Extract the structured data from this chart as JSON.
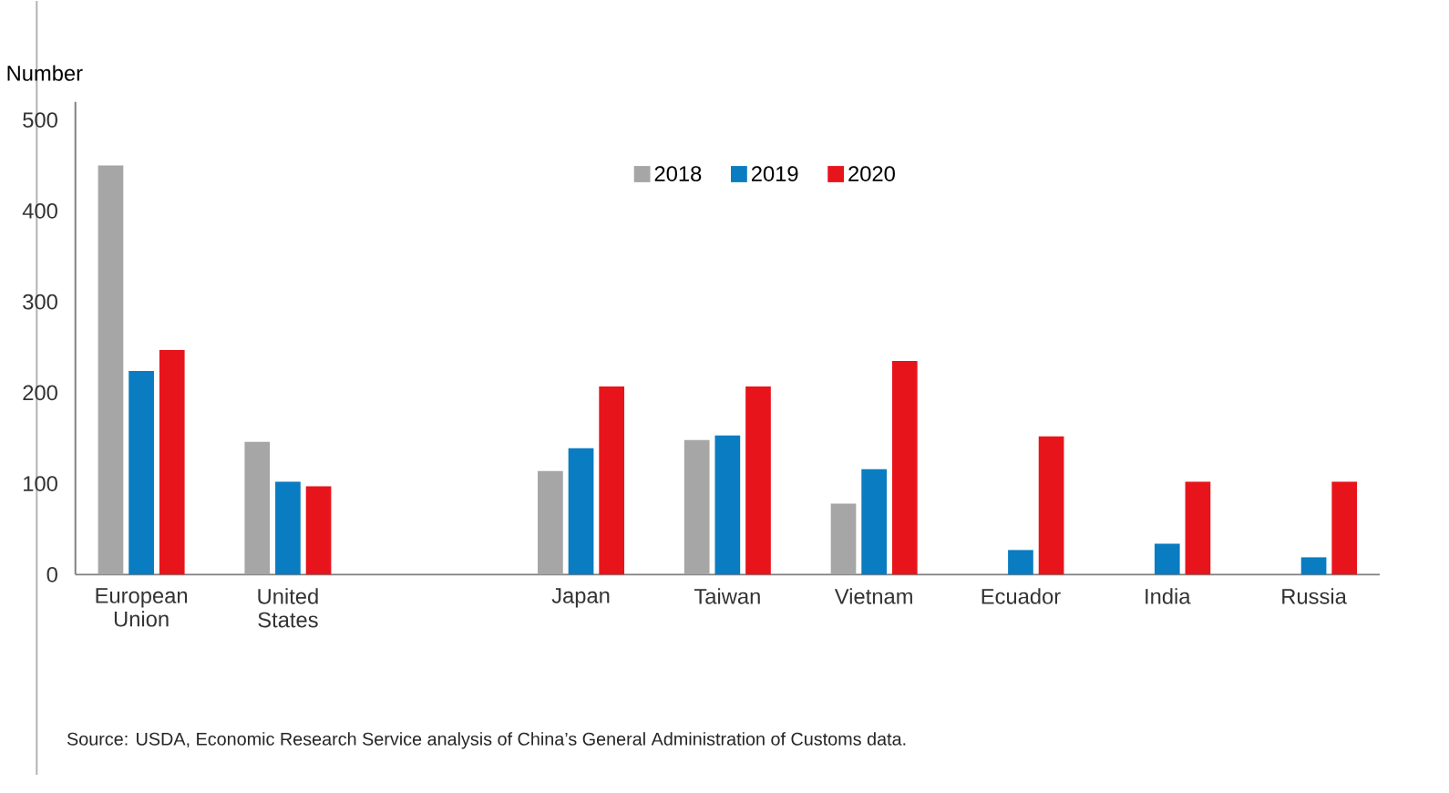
{
  "chart_data": {
    "type": "bar",
    "ylabel": "Number",
    "categories": [
      "European Union",
      "United States",
      null,
      "Japan",
      "Taiwan",
      "Vietnam",
      "Ecuador",
      "India",
      "Russia"
    ],
    "series": [
      {
        "name": "2018",
        "color": "#a6a6a6",
        "values": [
          450,
          146,
          null,
          114,
          148,
          78,
          null,
          null,
          null
        ]
      },
      {
        "name": "2019",
        "color": "#0a7cc1",
        "values": [
          224,
          102,
          null,
          139,
          153,
          116,
          27,
          34,
          19
        ]
      },
      {
        "name": "2020",
        "color": "#e8141b",
        "values": [
          247,
          97,
          null,
          207,
          207,
          235,
          152,
          102,
          102
        ]
      }
    ],
    "ylim": [
      0,
      520
    ],
    "yticks": [
      0,
      100,
      200,
      300,
      400,
      500
    ],
    "legend": "top",
    "grid": false,
    "annotations": [
      "Source: USDA, Economic Research Service analysis of China’s General Administration of Customs data."
    ]
  }
}
